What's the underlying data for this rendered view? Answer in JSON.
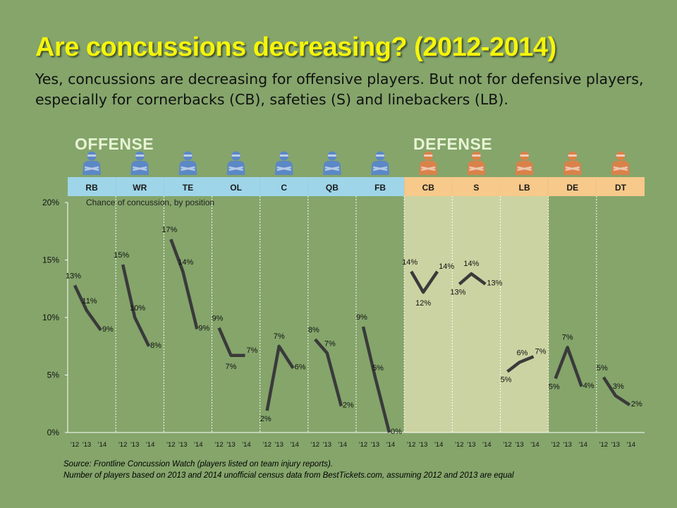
{
  "title": "Are concussions decreasing? (2012-2014)",
  "subtitle": "Yes, concussions are decreasing for offensive players. But not for defensive players, especially for cornerbacks (CB), safeties (S) and linebackers (LB).",
  "groups": {
    "offense_label": "OFFENSE",
    "defense_label": "DEFENSE"
  },
  "colors": {
    "offense": "#9ed5e8",
    "defense": "#f7c98a",
    "highlight": "#ccd3a2",
    "background": "#85a56b",
    "line": "#3a3a3a",
    "player_offense": "#5b88c6",
    "player_defense": "#d9824a"
  },
  "icons": {
    "offense": "player-silhouette-icon",
    "defense": "player-silhouette-icon"
  },
  "chart_data": {
    "type": "line",
    "title": "Are concussions decreasing? (2012-2014)",
    "annotation": "Chance of concussion, by position",
    "ylim": [
      0,
      20
    ],
    "yticks": [
      "0%",
      "5%",
      "10%",
      "15%",
      "20%"
    ],
    "x": [
      "'12",
      "'13",
      "'14"
    ],
    "grid": false,
    "panels": [
      {
        "position": "RB",
        "side": "offense",
        "highlight": false,
        "values": [
          12.8,
          10.6,
          8.9
        ],
        "labels": [
          "13%",
          "11%",
          "9%"
        ]
      },
      {
        "position": "WR",
        "side": "offense",
        "highlight": false,
        "values": [
          14.6,
          10.0,
          7.5
        ],
        "labels": [
          "15%",
          "10%",
          "8%"
        ]
      },
      {
        "position": "TE",
        "side": "offense",
        "highlight": false,
        "values": [
          16.8,
          14.0,
          9.0
        ],
        "labels": [
          "17%",
          "14%",
          "9%"
        ]
      },
      {
        "position": "OL",
        "side": "offense",
        "highlight": false,
        "values": [
          9.1,
          6.7,
          6.7
        ],
        "labels": [
          "9%",
          "7%",
          "7%"
        ]
      },
      {
        "position": "C",
        "side": "offense",
        "highlight": false,
        "values": [
          1.9,
          7.5,
          5.6
        ],
        "labels": [
          "2%",
          "7%",
          "6%"
        ]
      },
      {
        "position": "QB",
        "side": "offense",
        "highlight": false,
        "values": [
          8.1,
          6.9,
          2.3
        ],
        "labels": [
          "8%",
          "7%",
          "2%"
        ]
      },
      {
        "position": "FB",
        "side": "offense",
        "highlight": false,
        "values": [
          9.2,
          4.8,
          0.0
        ],
        "labels": [
          "9%",
          "5%",
          "0%"
        ]
      },
      {
        "position": "CB",
        "side": "defense",
        "highlight": true,
        "values": [
          14.0,
          12.2,
          14.0
        ],
        "labels": [
          "14%",
          "12%",
          "14%"
        ]
      },
      {
        "position": "S",
        "side": "defense",
        "highlight": true,
        "values": [
          12.9,
          13.8,
          12.9
        ],
        "labels": [
          "13%",
          "14%",
          "13%"
        ]
      },
      {
        "position": "LB",
        "side": "defense",
        "highlight": true,
        "values": [
          5.3,
          6.1,
          6.6
        ],
        "labels": [
          "5%",
          "6%",
          "7%"
        ]
      },
      {
        "position": "DE",
        "side": "defense",
        "highlight": false,
        "values": [
          4.7,
          7.4,
          4.0
        ],
        "labels": [
          "5%",
          "7%",
          "4%"
        ]
      },
      {
        "position": "DT",
        "side": "defense",
        "highlight": false,
        "values": [
          4.8,
          3.2,
          2.4
        ],
        "labels": [
          "5%",
          "3%",
          "2%"
        ]
      }
    ]
  },
  "footnotes": [
    "Source: Frontline Concussion Watch (players listed on team injury reports).",
    "Number of players based on 2013 and 2014 unofficial census data from BestTickets.com, assuming 2012 and 2013 are equal"
  ]
}
